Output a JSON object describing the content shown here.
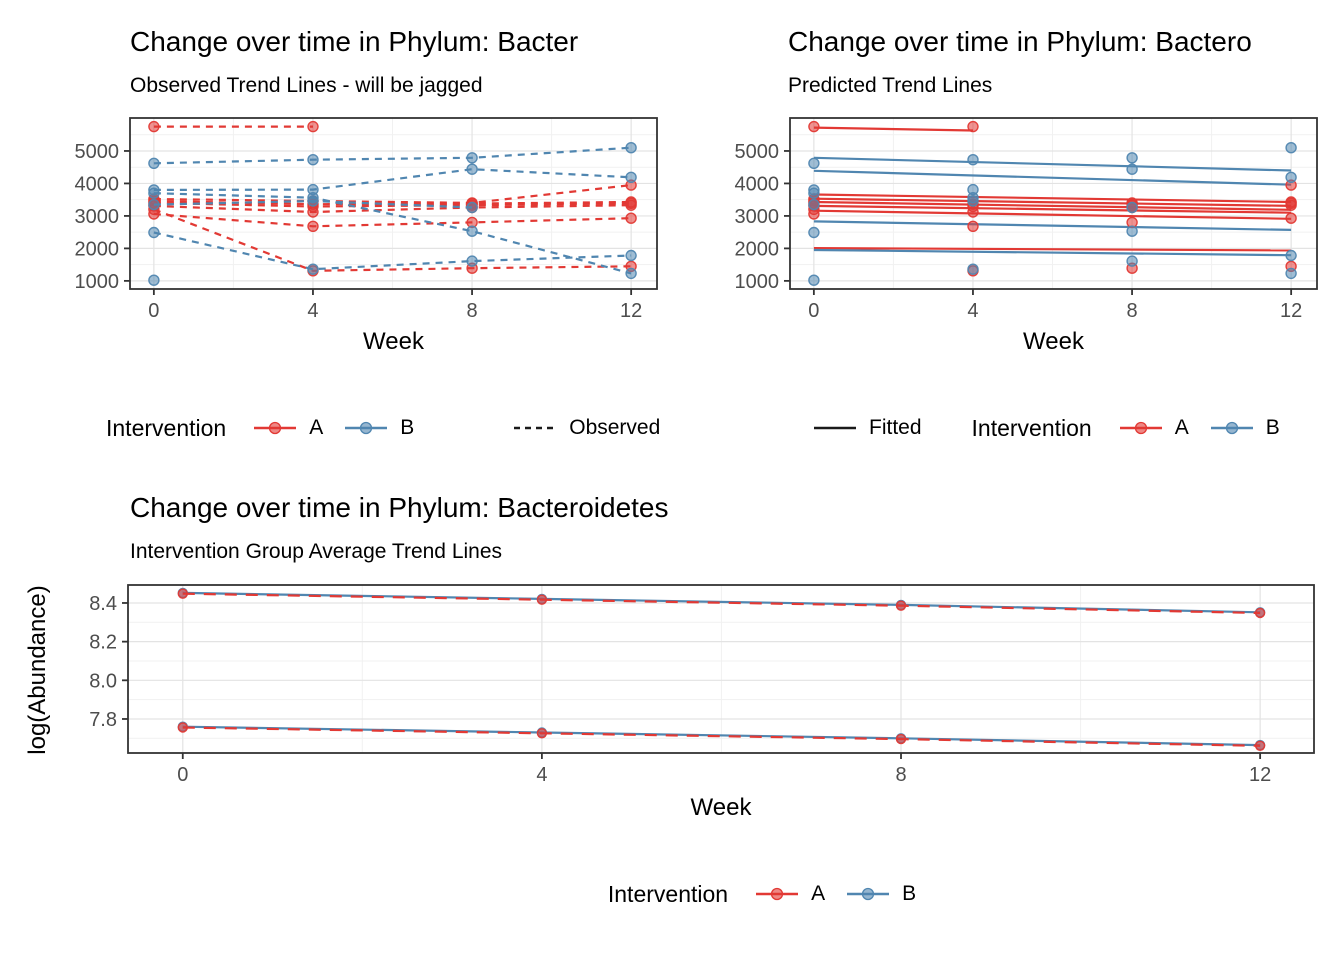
{
  "colors": {
    "A": "#E23934",
    "B": "#5086B0",
    "observed": "#1A1A1A",
    "fitted": "#1A1A1A",
    "grid_major": "#E3E3E3",
    "grid_minor": "#F1F1F1",
    "panel_border": "#333333",
    "axis_text": "#4D4D4D",
    "title": "#000000"
  },
  "chart_data": [
    {
      "id": "observed",
      "type": "line",
      "title": "Change over time in Phylum: Bacter",
      "subtitle": "Observed Trend Lines - will be jagged",
      "xlabel": "Week",
      "ylabel": "",
      "xlim": [
        -0.6,
        12.65
      ],
      "ylim": [
        750,
        6015
      ],
      "x_ticks": [
        0,
        4,
        8,
        12
      ],
      "x_tick_labels": [
        "0",
        "4",
        "8",
        "12"
      ],
      "y_ticks": [
        1000,
        2000,
        3000,
        4000,
        5000
      ],
      "y_tick_labels": [
        "1000",
        "2000",
        "3000",
        "4000",
        "5000"
      ],
      "x_minor": [
        2,
        6,
        10
      ],
      "y_minor": [
        1500,
        2500,
        3500,
        4500,
        5500
      ],
      "grid": true,
      "legend_position": "bottom",
      "point_radius": 5,
      "line_width": 2.2,
      "dash_pattern": "7 6",
      "series": [
        {
          "name": "A1",
          "group": "A",
          "line": "dashed",
          "points": true,
          "x": [
            0,
            4
          ],
          "y": [
            5750,
            5750
          ]
        },
        {
          "name": "A2",
          "group": "A",
          "line": "dashed",
          "points": true,
          "x": [
            0,
            4,
            8,
            12
          ],
          "y": [
            3520,
            3460,
            3400,
            3950
          ]
        },
        {
          "name": "A3",
          "group": "A",
          "line": "dashed",
          "points": true,
          "x": [
            0,
            4,
            8,
            12
          ],
          "y": [
            3460,
            3360,
            3380,
            3430
          ]
        },
        {
          "name": "A4",
          "group": "A",
          "line": "dashed",
          "points": true,
          "x": [
            0,
            4,
            8,
            12
          ],
          "y": [
            3400,
            3290,
            3330,
            3390
          ]
        },
        {
          "name": "A5",
          "group": "A",
          "line": "dashed",
          "points": true,
          "x": [
            0,
            4,
            8,
            12
          ],
          "y": [
            3310,
            3120,
            3260,
            3330
          ]
        },
        {
          "name": "A6",
          "group": "A",
          "line": "dashed",
          "points": true,
          "x": [
            0,
            4,
            8,
            12
          ],
          "y": [
            3060,
            2680,
            2800,
            2930
          ]
        },
        {
          "name": "A7",
          "group": "A",
          "line": "dashed",
          "points": true,
          "x": [
            0,
            4,
            8,
            12
          ],
          "y": [
            3200,
            1310,
            1390,
            1450
          ]
        },
        {
          "name": "B1",
          "group": "B",
          "line": "dashed",
          "points": true,
          "x": [
            0,
            4,
            8,
            12
          ],
          "y": [
            4620,
            4730,
            4790,
            5100
          ]
        },
        {
          "name": "B2",
          "group": "B",
          "line": "dashed",
          "points": true,
          "x": [
            0,
            4,
            8,
            12
          ],
          "y": [
            3800,
            3810,
            4440,
            4190
          ]
        },
        {
          "name": "B3",
          "group": "B",
          "line": "dashed",
          "points": true,
          "x": [
            0,
            4,
            8,
            12
          ],
          "y": [
            3700,
            3560,
            2530,
            1230
          ]
        },
        {
          "name": "B4",
          "group": "B",
          "line": "dashed",
          "points": true,
          "x": [
            0,
            4,
            8
          ],
          "y": [
            3350,
            3460,
            3260
          ]
        },
        {
          "name": "B5",
          "group": "B",
          "line": "dashed",
          "points": true,
          "x": [
            0,
            4,
            8,
            12
          ],
          "y": [
            2490,
            1360,
            1610,
            1780
          ]
        },
        {
          "name": "B6",
          "group": "B",
          "line": "dashed",
          "points": true,
          "x": [
            0
          ],
          "y": [
            1020
          ]
        }
      ],
      "legend": {
        "items": [
          {
            "kind": "label",
            "name": "legend-title-intervention",
            "text": "Intervention"
          },
          {
            "kind": "key",
            "name": "legend-key-a",
            "text": "A",
            "color": "A",
            "dash": "solid",
            "point": true
          },
          {
            "kind": "key",
            "name": "legend-key-b",
            "text": "B",
            "color": "B",
            "dash": "solid",
            "point": true
          },
          {
            "kind": "gap",
            "width": 78
          },
          {
            "kind": "key",
            "name": "legend-key-observed",
            "text": "Observed",
            "color": "observed",
            "dash": "dashed",
            "point": false
          }
        ]
      }
    },
    {
      "id": "predicted",
      "type": "line",
      "title": "Change over time in Phylum: Bactero",
      "subtitle": "Predicted Trend Lines",
      "xlabel": "Week",
      "ylabel": "",
      "xlim": [
        -0.6,
        12.65
      ],
      "ylim": [
        750,
        6015
      ],
      "x_ticks": [
        0,
        4,
        8,
        12
      ],
      "x_tick_labels": [
        "0",
        "4",
        "8",
        "12"
      ],
      "y_ticks": [
        1000,
        2000,
        3000,
        4000,
        5000
      ],
      "y_tick_labels": [
        "1000",
        "2000",
        "3000",
        "4000",
        "5000"
      ],
      "x_minor": [
        2,
        6,
        10
      ],
      "y_minor": [
        1500,
        2500,
        3500,
        4500,
        5500
      ],
      "grid": true,
      "legend_position": "bottom",
      "point_radius": 5,
      "line_width": 2.2,
      "dash_pattern": "7 6",
      "series": [
        {
          "name": "fit-A1",
          "group": "A",
          "line": "solid",
          "points": false,
          "x": [
            0,
            4
          ],
          "y": [
            5720,
            5630
          ]
        },
        {
          "name": "fit-A2",
          "group": "A",
          "line": "solid",
          "points": false,
          "x": [
            0,
            12
          ],
          "y": [
            3660,
            3430
          ]
        },
        {
          "name": "fit-A3",
          "group": "A",
          "line": "solid",
          "points": false,
          "x": [
            0,
            12
          ],
          "y": [
            3530,
            3310
          ]
        },
        {
          "name": "fit-A4",
          "group": "A",
          "line": "solid",
          "points": false,
          "x": [
            0,
            12
          ],
          "y": [
            3430,
            3190
          ]
        },
        {
          "name": "fit-A5",
          "group": "A",
          "line": "solid",
          "points": false,
          "x": [
            0,
            12
          ],
          "y": [
            3310,
            3100
          ]
        },
        {
          "name": "fit-A6",
          "group": "A",
          "line": "solid",
          "points": false,
          "x": [
            0,
            12
          ],
          "y": [
            3160,
            2910
          ]
        },
        {
          "name": "fit-A7",
          "group": "A",
          "line": "solid",
          "points": false,
          "x": [
            0,
            12
          ],
          "y": [
            2010,
            1940
          ]
        },
        {
          "name": "fit-B1",
          "group": "B",
          "line": "solid",
          "points": false,
          "x": [
            0,
            12
          ],
          "y": [
            4790,
            4400
          ]
        },
        {
          "name": "fit-B2",
          "group": "B",
          "line": "solid",
          "points": false,
          "x": [
            0,
            12
          ],
          "y": [
            4390,
            3960
          ]
        },
        {
          "name": "fit-B3",
          "group": "B",
          "line": "solid",
          "points": false,
          "x": [
            0,
            12
          ],
          "y": [
            2830,
            2570
          ]
        },
        {
          "name": "fit-B4",
          "group": "B",
          "line": "solid",
          "points": false,
          "x": [
            0,
            12
          ],
          "y": [
            1950,
            1790
          ]
        },
        {
          "name": "obs-A1",
          "group": "A",
          "line": "none",
          "points": true,
          "x": [
            0,
            4
          ],
          "y": [
            5750,
            5750
          ]
        },
        {
          "name": "obs-A2",
          "group": "A",
          "line": "none",
          "points": true,
          "x": [
            0,
            4,
            8,
            12
          ],
          "y": [
            3520,
            3460,
            3400,
            3950
          ]
        },
        {
          "name": "obs-A3",
          "group": "A",
          "line": "none",
          "points": true,
          "x": [
            0,
            4,
            8,
            12
          ],
          "y": [
            3460,
            3360,
            3380,
            3430
          ]
        },
        {
          "name": "obs-A4",
          "group": "A",
          "line": "none",
          "points": true,
          "x": [
            0,
            4,
            8,
            12
          ],
          "y": [
            3400,
            3290,
            3330,
            3390
          ]
        },
        {
          "name": "obs-A5",
          "group": "A",
          "line": "none",
          "points": true,
          "x": [
            0,
            4,
            8,
            12
          ],
          "y": [
            3310,
            3120,
            3260,
            3330
          ]
        },
        {
          "name": "obs-A6",
          "group": "A",
          "line": "none",
          "points": true,
          "x": [
            0,
            4,
            8,
            12
          ],
          "y": [
            3060,
            2680,
            2800,
            2930
          ]
        },
        {
          "name": "obs-A7",
          "group": "A",
          "line": "none",
          "points": true,
          "x": [
            0,
            4,
            8,
            12
          ],
          "y": [
            3200,
            1310,
            1390,
            1450
          ]
        },
        {
          "name": "obs-B1",
          "group": "B",
          "line": "none",
          "points": true,
          "x": [
            0,
            4,
            8,
            12
          ],
          "y": [
            4620,
            4730,
            4790,
            5100
          ]
        },
        {
          "name": "obs-B2",
          "group": "B",
          "line": "none",
          "points": true,
          "x": [
            0,
            4,
            8,
            12
          ],
          "y": [
            3800,
            3810,
            4440,
            4190
          ]
        },
        {
          "name": "obs-B3",
          "group": "B",
          "line": "none",
          "points": true,
          "x": [
            0,
            4,
            8,
            12
          ],
          "y": [
            3700,
            3560,
            2530,
            1230
          ]
        },
        {
          "name": "obs-B4",
          "group": "B",
          "line": "none",
          "points": true,
          "x": [
            0,
            4,
            8
          ],
          "y": [
            3350,
            3460,
            3260
          ]
        },
        {
          "name": "obs-B5",
          "group": "B",
          "line": "none",
          "points": true,
          "x": [
            0,
            4,
            8,
            12
          ],
          "y": [
            2490,
            1360,
            1610,
            1780
          ]
        },
        {
          "name": "obs-B6",
          "group": "B",
          "line": "none",
          "points": true,
          "x": [
            0
          ],
          "y": [
            1020
          ]
        }
      ],
      "legend": {
        "items": [
          {
            "kind": "key",
            "name": "legend-key-fitted",
            "text": "Fitted",
            "color": "fitted",
            "dash": "solid",
            "point": false
          },
          {
            "kind": "gap",
            "width": 30
          },
          {
            "kind": "label",
            "name": "legend-title-intervention",
            "text": "Intervention"
          },
          {
            "kind": "key",
            "name": "legend-key-a",
            "text": "A",
            "color": "A",
            "dash": "solid",
            "point": true
          },
          {
            "kind": "key",
            "name": "legend-key-b",
            "text": "B",
            "color": "B",
            "dash": "solid",
            "point": true
          }
        ]
      }
    },
    {
      "id": "group-average",
      "type": "line",
      "title": "Change over time in Phylum: Bacteroidetes",
      "subtitle": "Intervention Group Average Trend Lines",
      "xlabel": "Week",
      "ylabel": "log(Abundance)",
      "xlim": [
        -0.61,
        12.6
      ],
      "ylim": [
        7.624,
        8.493
      ],
      "x_ticks": [
        0,
        4,
        8,
        12
      ],
      "x_tick_labels": [
        "0",
        "4",
        "8",
        "12"
      ],
      "y_ticks": [
        7.8,
        8.0,
        8.2,
        8.4
      ],
      "y_tick_labels": [
        "7.8",
        "8.0",
        "8.2",
        "8.4"
      ],
      "x_minor": [
        2,
        6,
        10
      ],
      "y_minor": [
        7.7,
        7.9,
        8.1,
        8.3
      ],
      "grid": true,
      "legend_position": "bottom",
      "point_radius": 4.5,
      "line_width": 2.2,
      "dash_pattern": "12 9",
      "series": [
        {
          "name": "B-upper-avg",
          "group": "B",
          "line": "solid",
          "points": true,
          "x": [
            0,
            4,
            8,
            12
          ],
          "y": [
            8.452,
            8.421,
            8.39,
            8.352
          ]
        },
        {
          "name": "A-upper-avg",
          "group": "A",
          "line": "dashed",
          "points": true,
          "x": [
            0,
            4,
            8,
            12
          ],
          "y": [
            8.448,
            8.417,
            8.386,
            8.348
          ]
        },
        {
          "name": "B-lower-avg",
          "group": "B",
          "line": "solid",
          "points": true,
          "x": [
            0,
            4,
            8,
            12
          ],
          "y": [
            7.76,
            7.73,
            7.7,
            7.665
          ]
        },
        {
          "name": "A-lower-avg",
          "group": "A",
          "line": "dashed",
          "points": true,
          "x": [
            0,
            4,
            8,
            12
          ],
          "y": [
            7.756,
            7.726,
            7.696,
            7.661
          ]
        }
      ],
      "legend": {
        "items": [
          {
            "kind": "label",
            "name": "legend-title-intervention",
            "text": "Intervention"
          },
          {
            "kind": "key",
            "name": "legend-key-a",
            "text": "A",
            "color": "A",
            "dash": "solid",
            "point": true
          },
          {
            "kind": "key",
            "name": "legend-key-b",
            "text": "B",
            "color": "B",
            "dash": "solid",
            "point": true
          }
        ]
      }
    }
  ]
}
